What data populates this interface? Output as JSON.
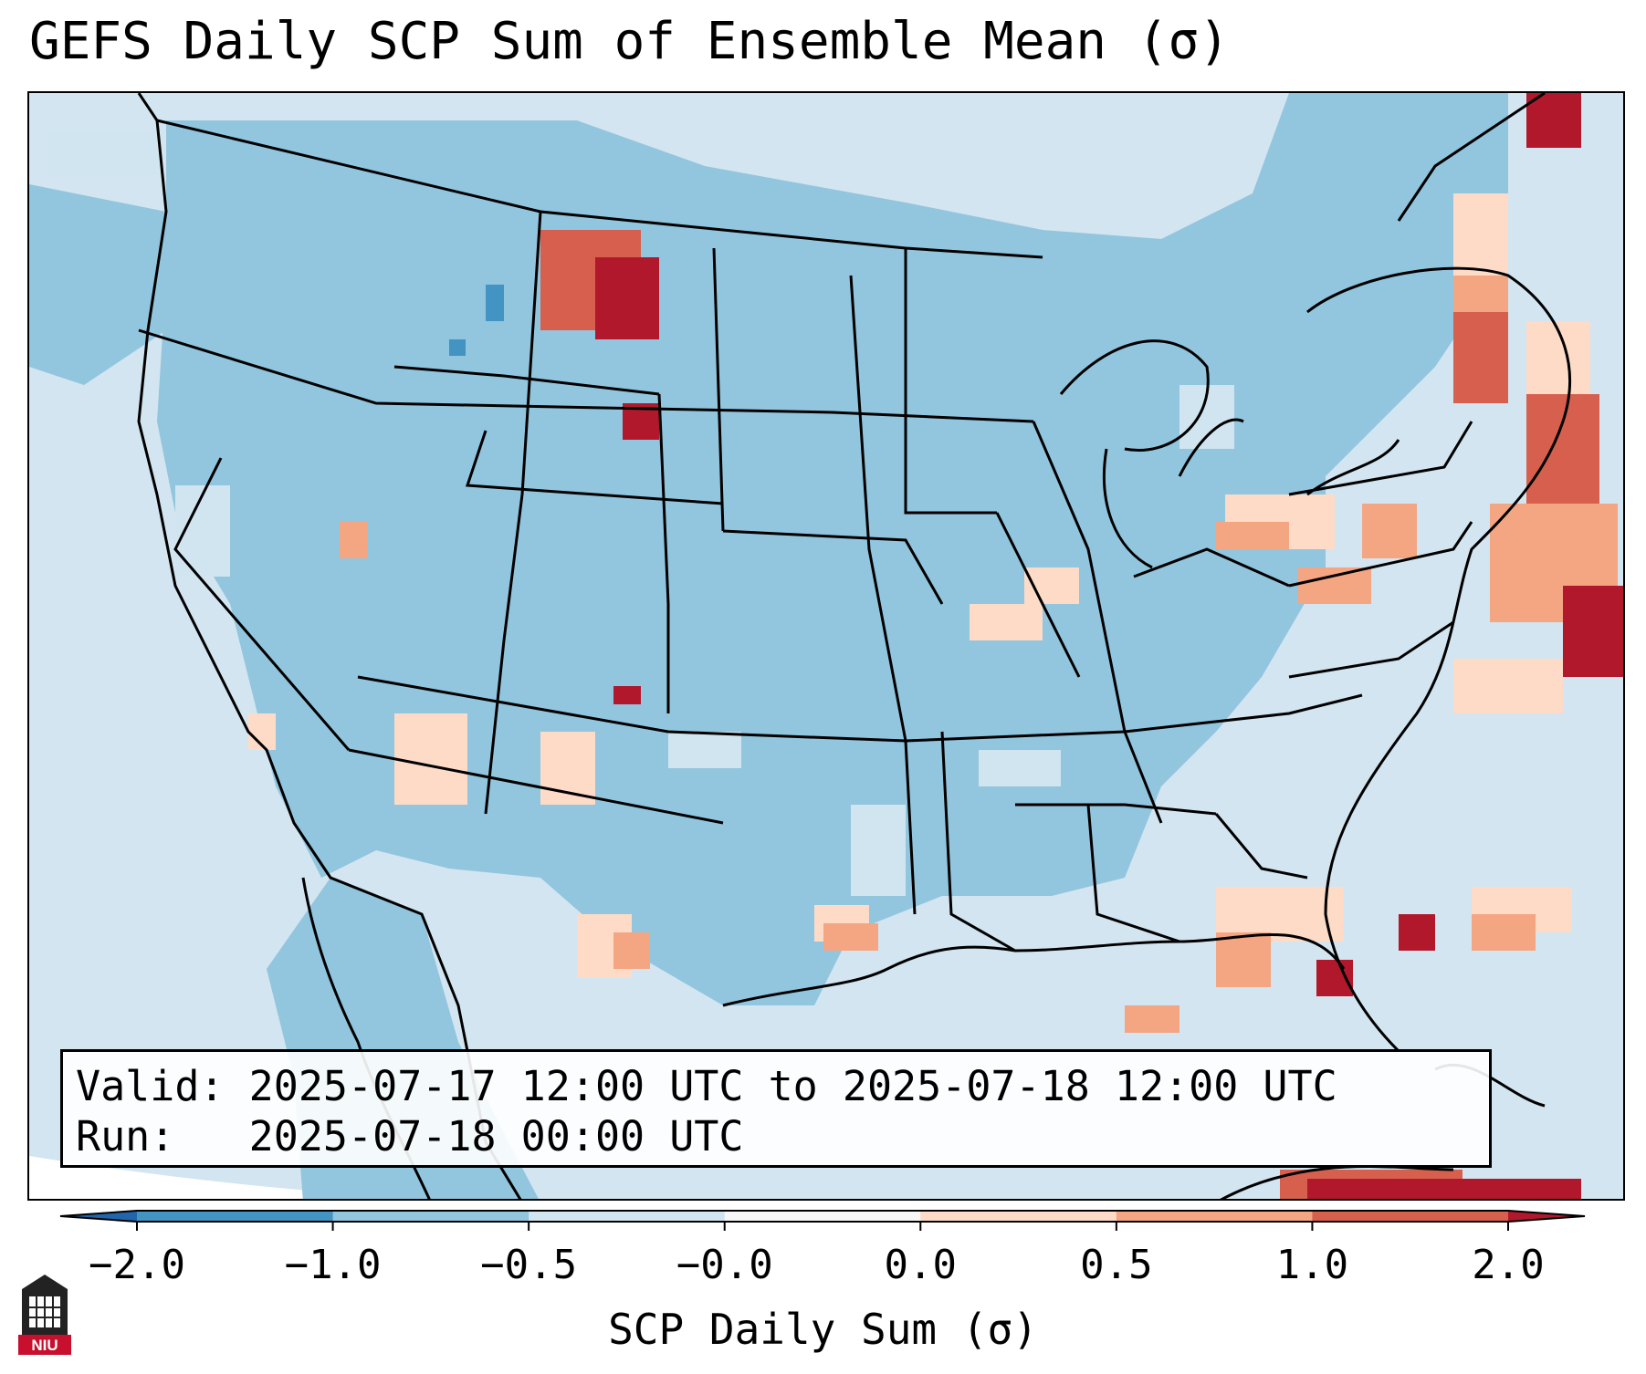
{
  "title": "GEFS Daily SCP Sum of Ensemble Mean (σ)",
  "info": {
    "valid_line": "Valid: 2025-07-17 12:00 UTC to 2025-07-18 12:00 UTC",
    "run_line": "Run:   2025-07-18 00:00 UTC"
  },
  "colorbar": {
    "label": "SCP Daily Sum (σ)",
    "ticks": [
      "−2.0",
      "−1.0",
      "−0.5",
      "−0.0",
      "0.0",
      "0.5",
      "1.0",
      "2.0"
    ],
    "bins": [
      {
        "from": -2.0,
        "to": -1.0,
        "color": "#4393c3"
      },
      {
        "from": -1.0,
        "to": -0.5,
        "color": "#92c5de"
      },
      {
        "from": -0.5,
        "to": -0.0,
        "color": "#d1e5f0"
      },
      {
        "from": -0.0,
        "to": 0.0,
        "color": "#f7f7f7"
      },
      {
        "from": 0.0,
        "to": 0.5,
        "color": "#fddbc7"
      },
      {
        "from": 0.5,
        "to": 1.0,
        "color": "#f4a582"
      },
      {
        "from": 1.0,
        "to": 2.0,
        "color": "#d6604d"
      }
    ],
    "under_color": "#2166ac",
    "over_color": "#b2182b"
  },
  "logo": {
    "text": "NIU",
    "color": "#c8102e"
  },
  "map": {
    "background_color": "#d3e5f0",
    "land_color": "#92c5de",
    "anomaly_regions": [
      {
        "name": "Northern High Plains",
        "level": "strong_positive"
      },
      {
        "name": "Mid-Atlantic and Northeast",
        "level": "positive"
      },
      {
        "name": "Western Atlantic",
        "level": "strong_positive"
      },
      {
        "name": "Caribbean",
        "level": "strong_positive"
      },
      {
        "name": "Florida",
        "level": "positive"
      },
      {
        "name": "Southern Plains",
        "level": "weak_positive"
      },
      {
        "name": "Ohio Valley",
        "level": "weak_positive"
      }
    ]
  }
}
